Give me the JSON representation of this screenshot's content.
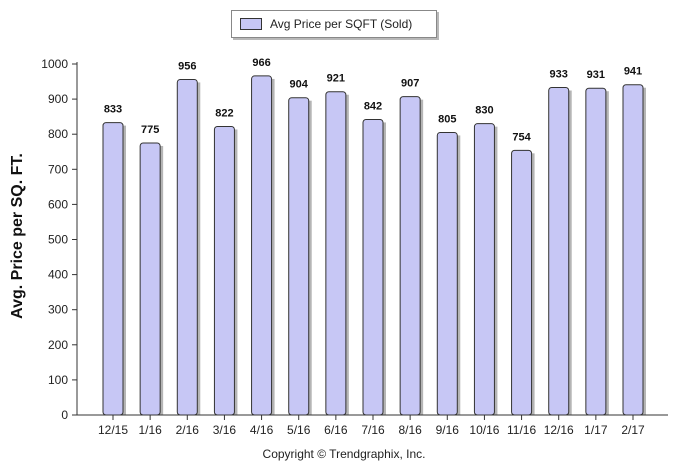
{
  "legend": {
    "label": "Avg Price per SQFT (Sold)"
  },
  "copyright": "Copyright © Trendgraphix, Inc.",
  "colors": {
    "bar_fill": "#c7c7f5",
    "bar_stroke": "#333333",
    "shadow": "#b5b5b5"
  },
  "chart_data": {
    "type": "bar",
    "title": "",
    "xlabel": "",
    "ylabel": "Avg. Price per SQ. FT.",
    "ylim": [
      0,
      1000
    ],
    "yticks": [
      0,
      100,
      200,
      300,
      400,
      500,
      600,
      700,
      800,
      900,
      1000
    ],
    "grid": false,
    "legend_position": "top-center",
    "categories": [
      "12/15",
      "1/16",
      "2/16",
      "3/16",
      "4/16",
      "5/16",
      "6/16",
      "7/16",
      "8/16",
      "9/16",
      "10/16",
      "11/16",
      "12/16",
      "1/17",
      "2/17"
    ],
    "series": [
      {
        "name": "Avg Price per SQFT (Sold)",
        "values": [
          833,
          775,
          956,
          822,
          966,
          904,
          921,
          842,
          907,
          805,
          830,
          754,
          933,
          931,
          941
        ]
      }
    ]
  }
}
